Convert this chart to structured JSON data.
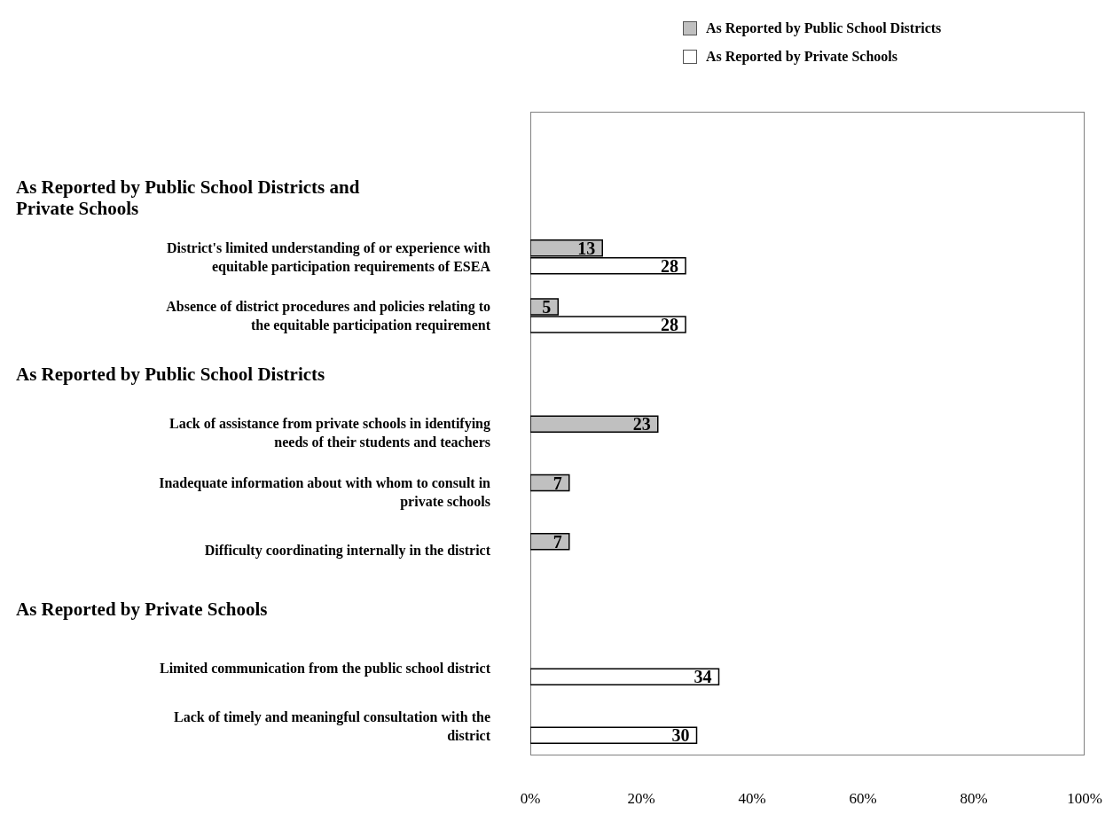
{
  "chart_data": {
    "type": "bar",
    "orientation": "horizontal",
    "annotations": [
      "As Reported by Public School Districts and Private Schools",
      "As Reported by Public School Districts",
      "As Reported by Private Schools"
    ],
    "categories": [
      null,
      "District's limited understanding of or experience with equitable participation requirements of ESEA",
      "Absence of district procedures and policies relating to the equitable participation requirement",
      null,
      "Lack of assistance from private schools in identifying needs of their students and teachers",
      "Inadequate information about with whom to consult in private schools",
      "Difficulty coordinating internally in the district",
      null,
      "Limited communication from the public school district",
      "Lack of timely and meaningful consultation with the district"
    ],
    "series": [
      {
        "name": "As Reported by Public School Districts",
        "color": "#c0c0c0",
        "values": [
          null,
          13,
          5,
          null,
          23,
          7,
          7,
          null,
          null,
          null
        ]
      },
      {
        "name": "As Reported by Private Schools",
        "color": "#ffffff",
        "values": [
          null,
          28,
          28,
          null,
          null,
          null,
          null,
          null,
          34,
          30
        ]
      }
    ],
    "xlim": [
      0,
      100
    ],
    "xticks": [
      {
        "value": 0,
        "label": "0%"
      },
      {
        "value": 20,
        "label": "20%"
      },
      {
        "value": 40,
        "label": "40%"
      },
      {
        "value": 60,
        "label": "60%"
      },
      {
        "value": 80,
        "label": "80%"
      },
      {
        "value": 100,
        "label": "100%"
      }
    ],
    "data_labels": true,
    "grid": false,
    "legend": "top right"
  }
}
